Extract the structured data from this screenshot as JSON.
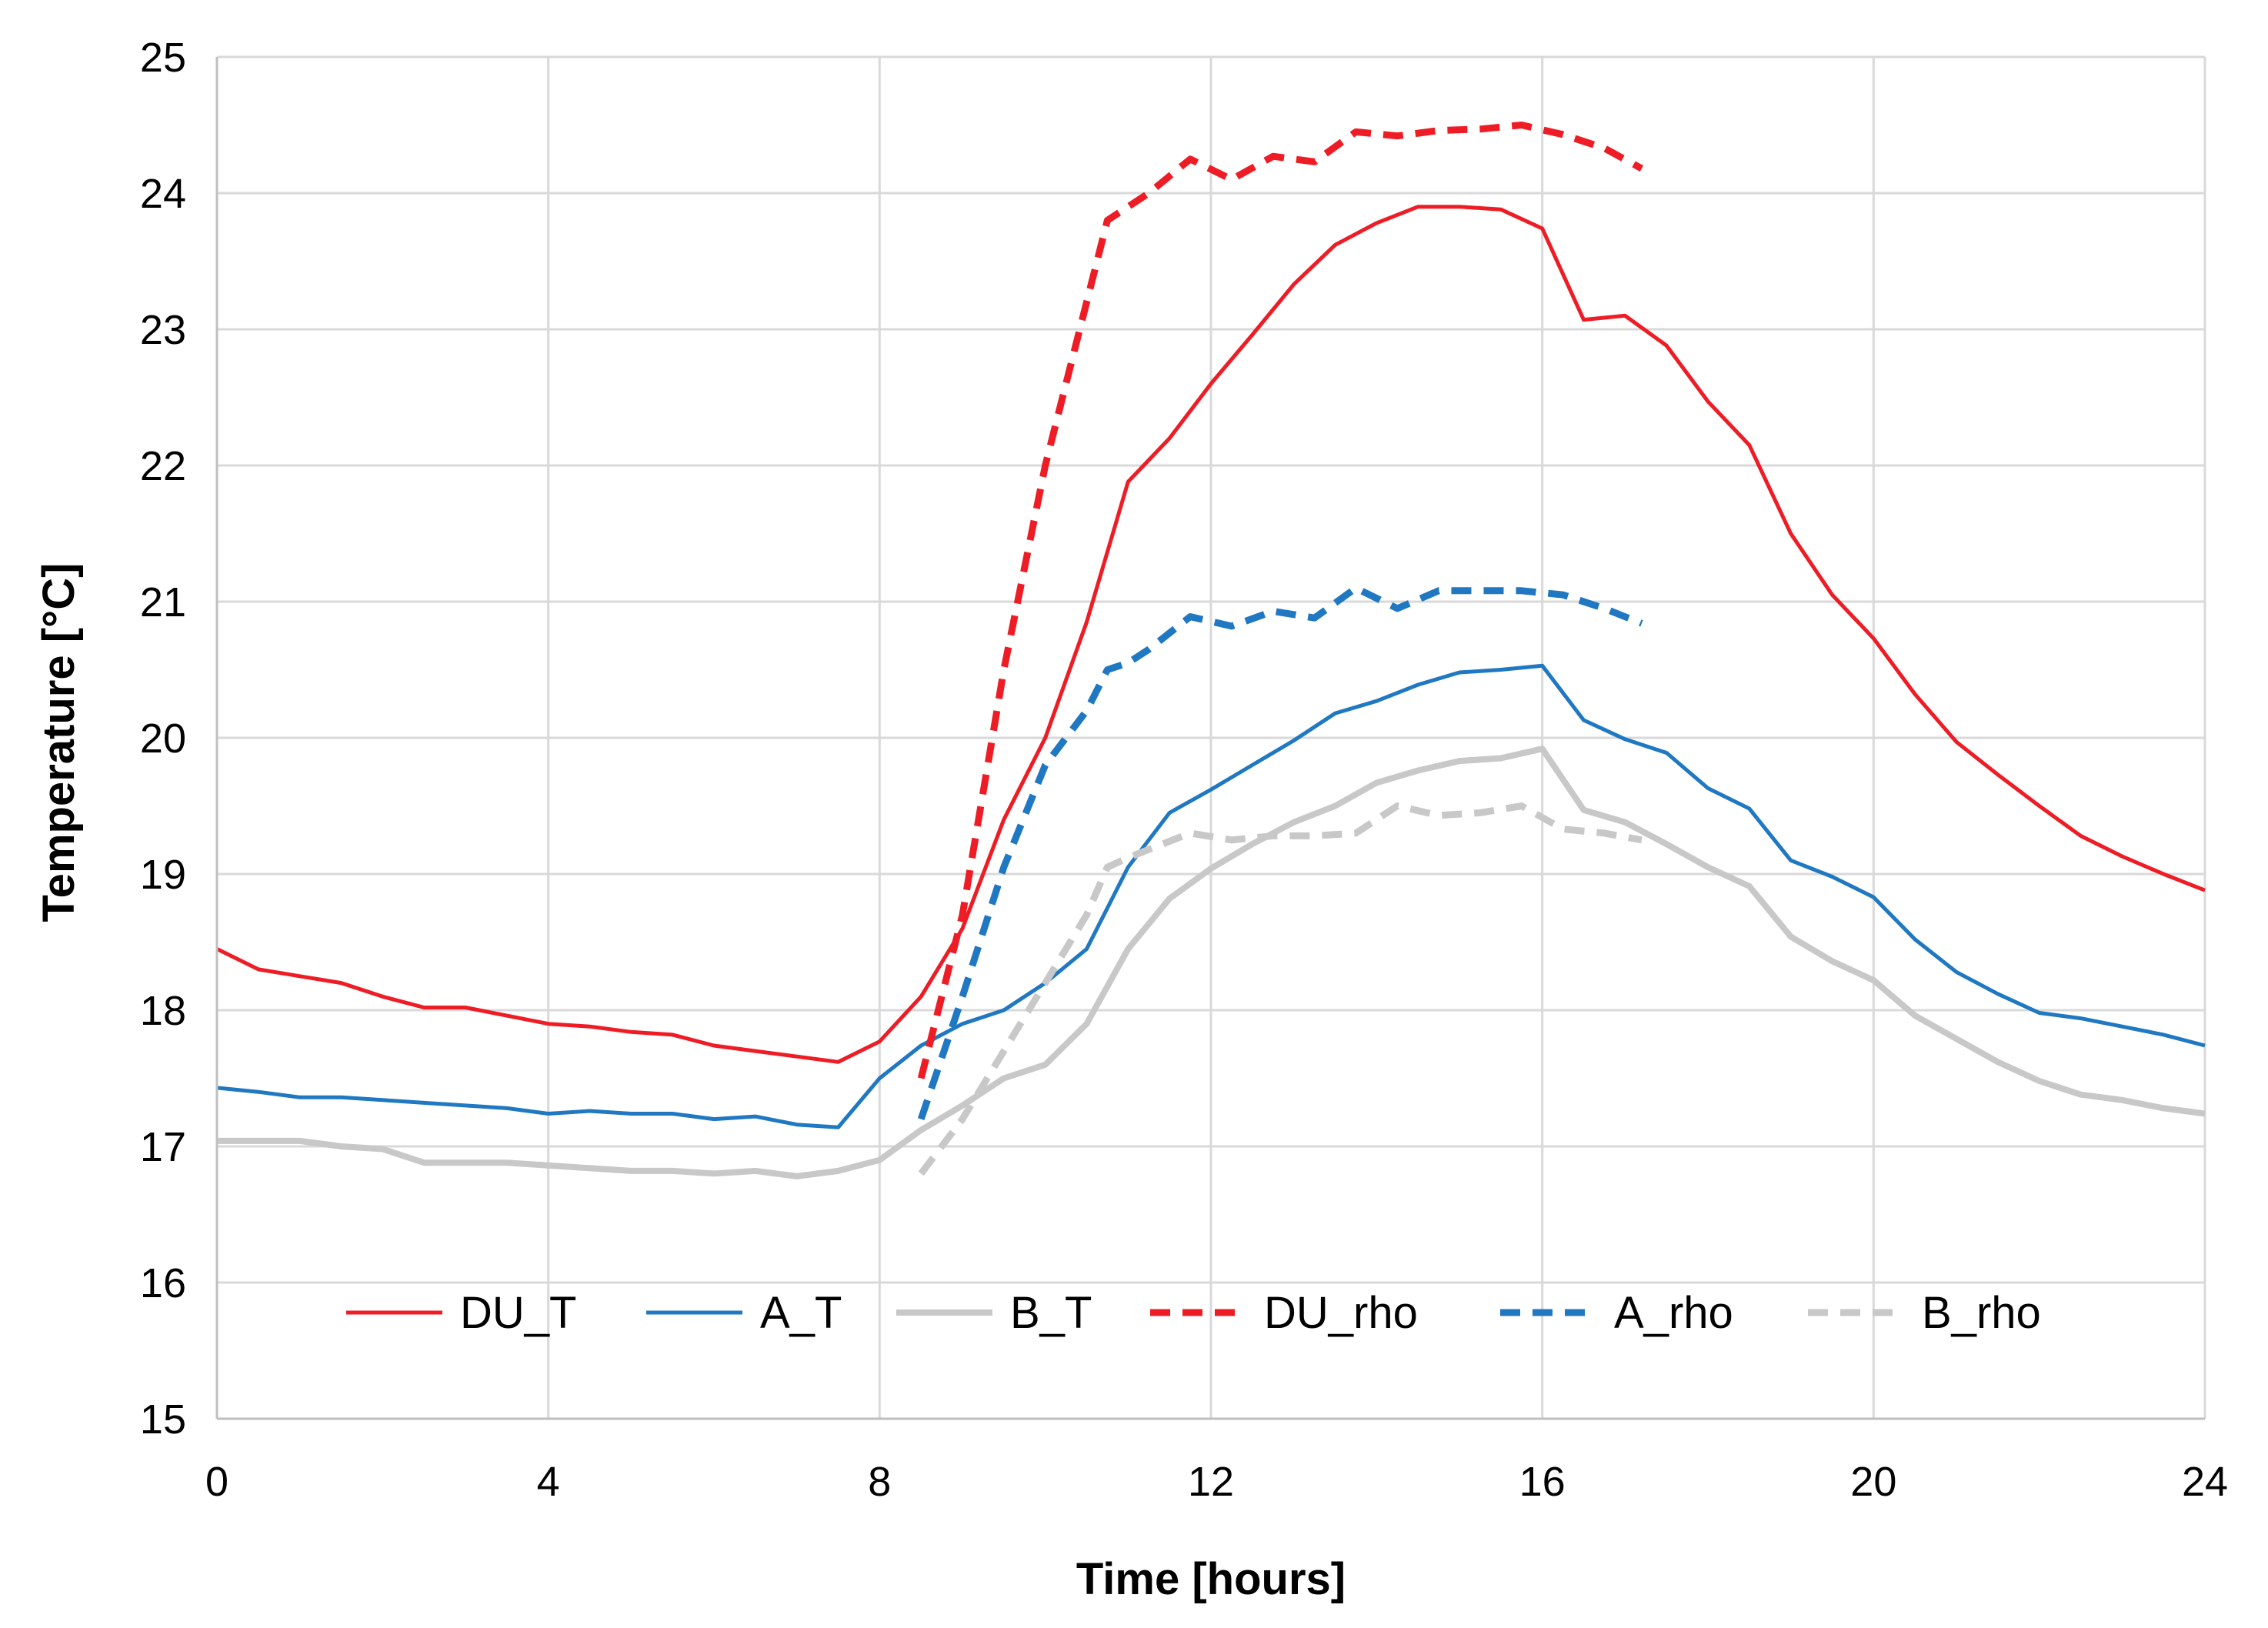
{
  "chart_data": {
    "type": "line",
    "title": "",
    "xlabel": "Time [hours]",
    "ylabel": "Temperature [°C]",
    "xlim": [
      0,
      24
    ],
    "ylim": [
      15,
      25
    ],
    "xticks": [
      0,
      4,
      8,
      12,
      16,
      20,
      24
    ],
    "yticks": [
      15,
      16,
      17,
      18,
      19,
      20,
      21,
      22,
      23,
      24,
      25
    ],
    "grid": true,
    "legend_position": "bottom-center",
    "series": [
      {
        "name": "DU_T",
        "color": "#ee1c25",
        "dash": "solid",
        "x": [
          0,
          0.5,
          1,
          1.5,
          2,
          2.5,
          3,
          3.5,
          4,
          4.5,
          5,
          5.5,
          6,
          6.5,
          7,
          7.5,
          8,
          8.5,
          9,
          9.5,
          10,
          10.5,
          11,
          11.5,
          12,
          12.5,
          13,
          13.5,
          14,
          14.5,
          15,
          15.5,
          16,
          16.5,
          17,
          17.5,
          18,
          18.5,
          19,
          19.5,
          20,
          20.5,
          21,
          21.5,
          22,
          22.5,
          23,
          23.5,
          24
        ],
        "y": [
          18.45,
          18.3,
          18.25,
          18.2,
          18.1,
          18.02,
          18.02,
          17.96,
          17.9,
          17.88,
          17.84,
          17.82,
          17.74,
          17.7,
          17.66,
          17.62,
          17.77,
          18.1,
          18.6,
          19.4,
          20.0,
          20.85,
          21.88,
          22.2,
          22.6,
          22.96,
          23.33,
          23.62,
          23.78,
          23.9,
          23.9,
          23.88,
          23.74,
          23.07,
          23.1,
          22.88,
          22.47,
          22.15,
          21.5,
          21.05,
          20.73,
          20.32,
          19.97,
          19.73,
          19.5,
          19.28,
          19.13,
          19.0,
          18.88
        ]
      },
      {
        "name": "A_T",
        "color": "#1f78c1",
        "dash": "solid",
        "x": [
          0,
          0.5,
          1,
          1.5,
          2,
          2.5,
          3,
          3.5,
          4,
          4.5,
          5,
          5.5,
          6,
          6.5,
          7,
          7.5,
          8,
          8.5,
          9,
          9.5,
          10,
          10.5,
          11,
          11.5,
          12,
          12.5,
          13,
          13.5,
          14,
          14.5,
          15,
          15.5,
          16,
          16.5,
          17,
          17.5,
          18,
          18.5,
          19,
          19.5,
          20,
          20.5,
          21,
          21.5,
          22,
          22.5,
          23,
          23.5,
          24
        ],
        "y": [
          17.43,
          17.4,
          17.36,
          17.36,
          17.34,
          17.32,
          17.3,
          17.28,
          17.24,
          17.26,
          17.24,
          17.24,
          17.2,
          17.22,
          17.16,
          17.14,
          17.5,
          17.74,
          17.9,
          18.0,
          18.2,
          18.45,
          19.05,
          19.45,
          19.62,
          19.8,
          19.98,
          20.18,
          20.27,
          20.39,
          20.48,
          20.5,
          20.53,
          20.13,
          19.99,
          19.89,
          19.63,
          19.48,
          19.1,
          18.98,
          18.83,
          18.52,
          18.28,
          18.12,
          17.98,
          17.94,
          17.88,
          17.82,
          17.74
        ]
      },
      {
        "name": "B_T",
        "color": "#c8c8c8",
        "dash": "solid",
        "x": [
          0,
          0.5,
          1,
          1.5,
          2,
          2.5,
          3,
          3.5,
          4,
          4.5,
          5,
          5.5,
          6,
          6.5,
          7,
          7.5,
          8,
          8.5,
          9,
          9.5,
          10,
          10.5,
          11,
          11.5,
          12,
          12.5,
          13,
          13.5,
          14,
          14.5,
          15,
          15.5,
          16,
          16.5,
          17,
          17.5,
          18,
          18.5,
          19,
          19.5,
          20,
          20.5,
          21,
          21.5,
          22,
          22.5,
          23,
          23.5,
          24
        ],
        "y": [
          17.04,
          17.04,
          17.04,
          17.0,
          16.98,
          16.88,
          16.88,
          16.88,
          16.86,
          16.84,
          16.82,
          16.82,
          16.8,
          16.82,
          16.78,
          16.82,
          16.9,
          17.12,
          17.3,
          17.5,
          17.6,
          17.9,
          18.45,
          18.82,
          19.04,
          19.22,
          19.38,
          19.5,
          19.67,
          19.76,
          19.83,
          19.85,
          19.92,
          19.47,
          19.38,
          19.22,
          19.05,
          18.91,
          18.54,
          18.36,
          18.22,
          17.96,
          17.79,
          17.62,
          17.48,
          17.38,
          17.34,
          17.28,
          17.24
        ]
      },
      {
        "name": "DU_rho",
        "color": "#ee1c25",
        "dash": "dashed",
        "x": [
          8.5,
          9,
          9.5,
          10,
          10.5,
          10.75,
          11,
          11.25,
          11.75,
          12.25,
          12.75,
          13.25,
          13.75,
          14.25,
          14.75,
          15.25,
          15.75,
          16.25,
          16.75,
          17.2
        ],
        "y": [
          17.5,
          18.7,
          20.5,
          22.0,
          23.2,
          23.8,
          23.9,
          24.0,
          24.25,
          24.1,
          24.27,
          24.23,
          24.45,
          24.42,
          24.46,
          24.47,
          24.5,
          24.43,
          24.33,
          24.18
        ]
      },
      {
        "name": "A_rho",
        "color": "#1f78c1",
        "dash": "dashed",
        "x": [
          8.5,
          9,
          9.5,
          10,
          10.5,
          10.75,
          11,
          11.25,
          11.75,
          12.25,
          12.75,
          13.25,
          13.75,
          14.25,
          14.75,
          15.25,
          15.75,
          16.25,
          16.75,
          17.2
        ],
        "y": [
          17.2,
          18.1,
          19.05,
          19.8,
          20.2,
          20.5,
          20.55,
          20.65,
          20.89,
          20.82,
          20.93,
          20.88,
          21.1,
          20.95,
          21.08,
          21.08,
          21.08,
          21.05,
          20.95,
          20.84
        ]
      },
      {
        "name": "B_rho",
        "color": "#c8c8c8",
        "dash": "dashed",
        "x": [
          8.5,
          9,
          9.5,
          10,
          10.5,
          10.75,
          11,
          11.25,
          11.75,
          12.25,
          12.75,
          13.25,
          13.75,
          14.25,
          14.75,
          15.25,
          15.75,
          16.25,
          16.75,
          17.2
        ],
        "y": [
          16.8,
          17.2,
          17.7,
          18.2,
          18.7,
          19.05,
          19.12,
          19.18,
          19.3,
          19.25,
          19.28,
          19.28,
          19.3,
          19.5,
          19.43,
          19.45,
          19.5,
          19.33,
          19.3,
          19.25
        ]
      }
    ]
  }
}
